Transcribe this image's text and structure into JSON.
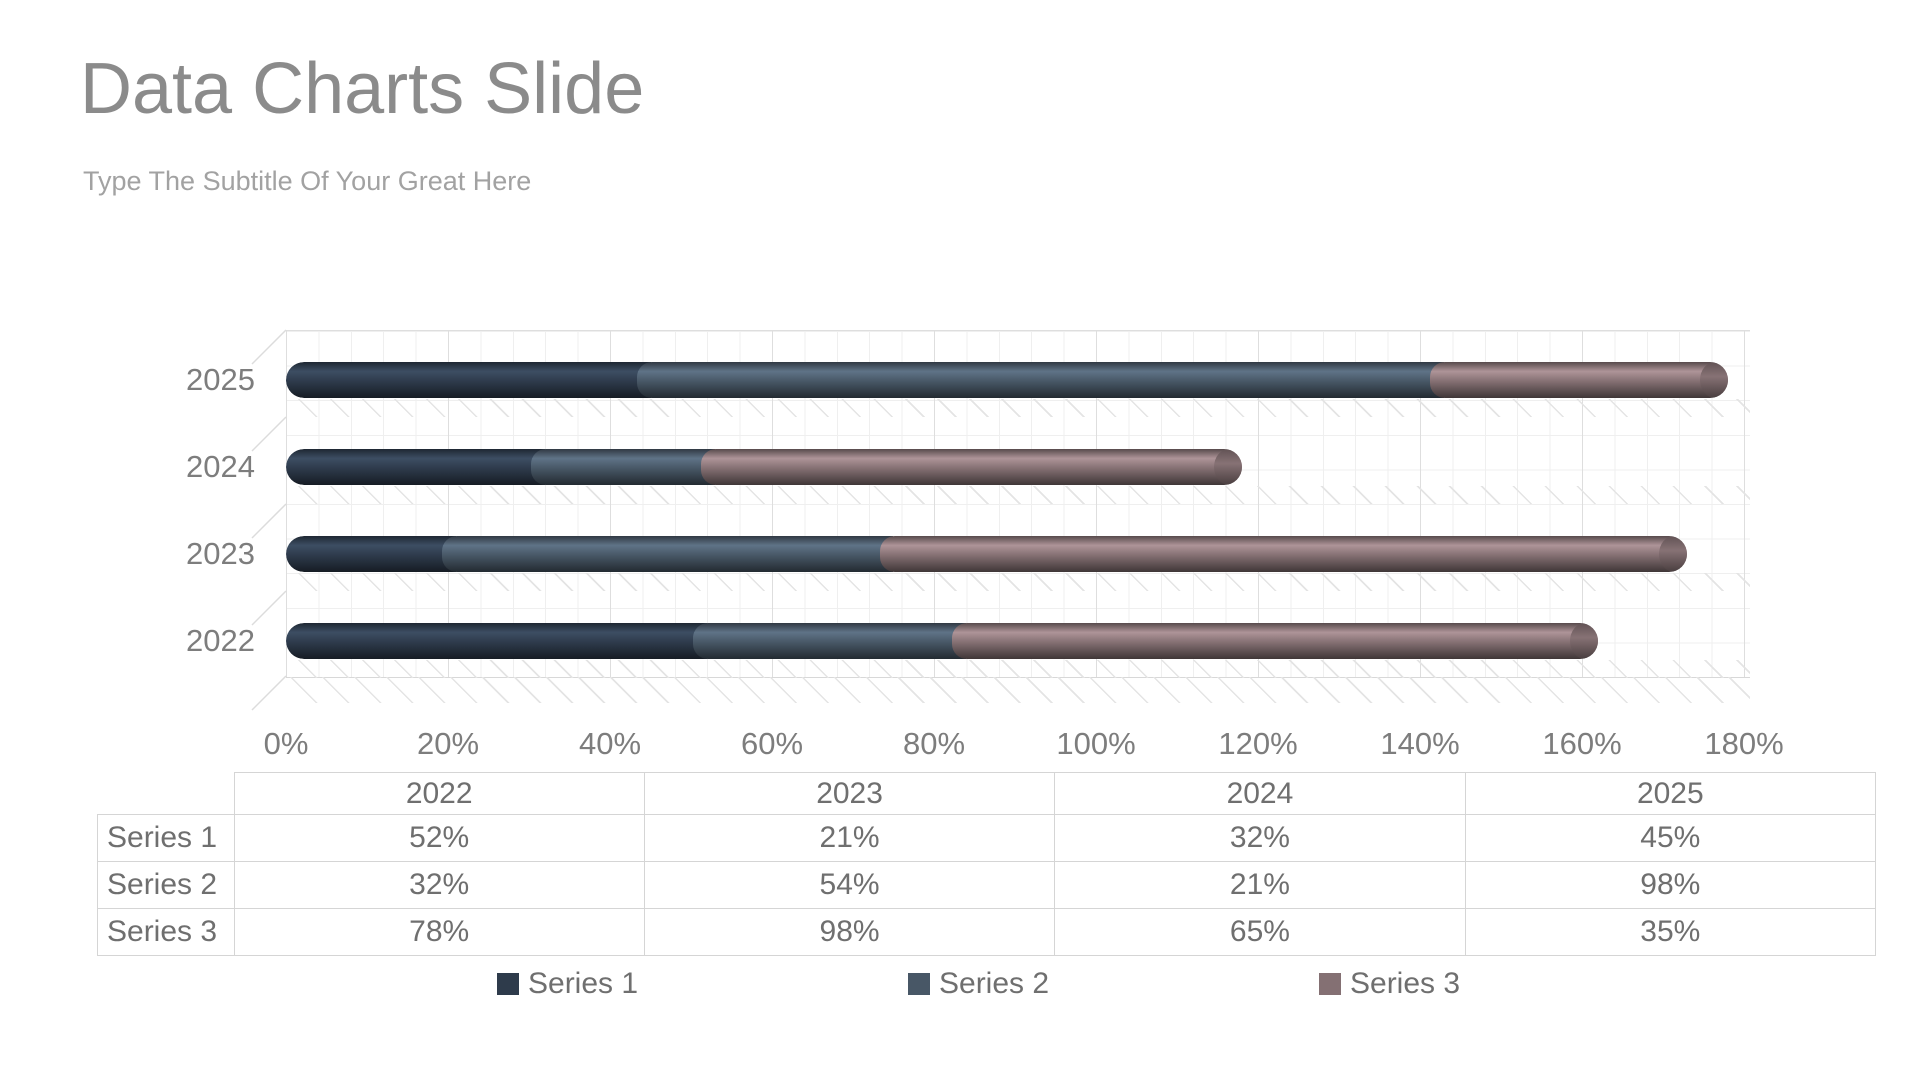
{
  "slide": {
    "title": "Data Charts Slide",
    "subtitle": "Type The Subtitle Of Your Great Here"
  },
  "colors": {
    "series1": "#2e3b4b",
    "series2": "#485766",
    "series3": "#847073",
    "grid_minor": "#efefef",
    "grid_major": "#dedede",
    "axis_text": "#7d7d7d",
    "table_border": "#d5d5d5",
    "table_text": "#6f6f6f",
    "title_text": "#8b8b8b",
    "subtitle_text": "#a2a2a2"
  },
  "chart_data": {
    "type": "bar",
    "orientation": "horizontal",
    "stacked": true,
    "categories": [
      "2022",
      "2023",
      "2024",
      "2025"
    ],
    "category_order_top_to_bottom": [
      "2025",
      "2024",
      "2023",
      "2022"
    ],
    "series": [
      {
        "name": "Series 1",
        "color": "#2e3b4b",
        "values": [
          52,
          21,
          32,
          45
        ]
      },
      {
        "name": "Series 2",
        "color": "#485766",
        "values": [
          32,
          54,
          21,
          98
        ]
      },
      {
        "name": "Series 3",
        "color": "#847073",
        "values": [
          78,
          98,
          65,
          35
        ]
      }
    ],
    "value_suffix": "%",
    "xlabel": "",
    "ylabel": "",
    "x_axis": {
      "min": 0,
      "max": 180,
      "step": 20,
      "tick_labels": [
        "0%",
        "20%",
        "40%",
        "60%",
        "80%",
        "100%",
        "120%",
        "140%",
        "160%",
        "180%"
      ]
    },
    "grid": true,
    "style": "3d-cylinder",
    "legend_position": "bottom"
  },
  "table": {
    "corner": "",
    "columns": [
      "2022",
      "2023",
      "2024",
      "2025"
    ],
    "rows": [
      {
        "label": "Series 1",
        "values": [
          "52%",
          "21%",
          "32%",
          "45%"
        ]
      },
      {
        "label": "Series 2",
        "values": [
          "32%",
          "54%",
          "21%",
          "98%"
        ]
      },
      {
        "label": "Series 3",
        "values": [
          "78%",
          "98%",
          "65%",
          "35%"
        ]
      }
    ]
  },
  "legend": {
    "items": [
      {
        "label": "Series 1",
        "color": "#2e3b4b"
      },
      {
        "label": "Series 2",
        "color": "#485766"
      },
      {
        "label": "Series 3",
        "color": "#847073"
      }
    ]
  }
}
